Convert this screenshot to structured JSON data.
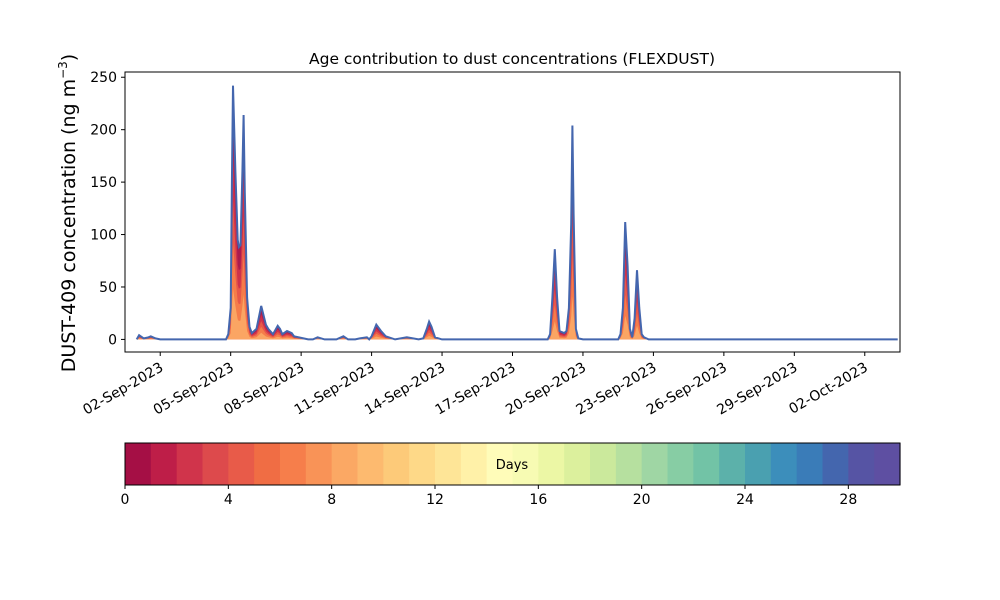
{
  "chart_data": {
    "type": "area",
    "title": "Age contribution to dust concentrations (FLEXDUST)",
    "ylabel_main": "DUST-409 concentration (ng m",
    "ylabel_sup": "−3",
    "ylabel_close": ")",
    "ylim": [
      -12,
      255
    ],
    "y_ticks": [
      0,
      50,
      100,
      150,
      200,
      250
    ],
    "x_tick_labels": [
      "02-Sep-2023",
      "05-Sep-2023",
      "08-Sep-2023",
      "11-Sep-2023",
      "14-Sep-2023",
      "17-Sep-2023",
      "20-Sep-2023",
      "23-Sep-2023",
      "26-Sep-2023",
      "29-Sep-2023",
      "02-Oct-2023"
    ],
    "x_tick_days": [
      2,
      5,
      8,
      11,
      14,
      17,
      20,
      23,
      26,
      29,
      32
    ],
    "xlim_days": [
      0.5,
      33.5
    ],
    "total_series": {
      "name": "total",
      "x_day": [
        1.0,
        1.1,
        1.3,
        1.5,
        1.6,
        1.8,
        2.0,
        2.5,
        3.0,
        3.5,
        4.0,
        4.5,
        4.8,
        4.9,
        5.0,
        5.05,
        5.1,
        5.2,
        5.3,
        5.35,
        5.42,
        5.5,
        5.55,
        5.6,
        5.7,
        5.8,
        5.9,
        6.1,
        6.3,
        6.5,
        6.6,
        6.8,
        7.0,
        7.1,
        7.2,
        7.4,
        7.6,
        7.7,
        7.9,
        8.1,
        8.3,
        8.5,
        8.7,
        9.0,
        9.3,
        9.5,
        9.8,
        10.0,
        10.3,
        10.5,
        10.8,
        10.9,
        11.0,
        11.2,
        11.4,
        11.6,
        12.0,
        12.5,
        13.0,
        13.2,
        13.35,
        13.45,
        13.55,
        13.7,
        14.0,
        15.0,
        16.0,
        17.0,
        18.0,
        18.5,
        18.6,
        18.7,
        18.8,
        18.9,
        19.0,
        19.1,
        19.2,
        19.3,
        19.4,
        19.5,
        19.55,
        19.6,
        19.7,
        19.8,
        20.0,
        20.5,
        21.0,
        21.3,
        21.5,
        21.6,
        21.7,
        21.8,
        21.9,
        22.0,
        22.1,
        22.2,
        22.3,
        22.4,
        22.5,
        22.6,
        22.7,
        22.8,
        23.0,
        24.0,
        25.0,
        26.0,
        27.0,
        28.0,
        29.0,
        30.0,
        31.0,
        32.0,
        33.0,
        33.4
      ],
      "y_ngm3": [
        0,
        4,
        1,
        2,
        3,
        1,
        0,
        0,
        0,
        0,
        0,
        0,
        0,
        5,
        30,
        150,
        242,
        160,
        95,
        88,
        90,
        160,
        214,
        140,
        40,
        12,
        6,
        10,
        32,
        14,
        10,
        5,
        13,
        10,
        5,
        8,
        6,
        3,
        2,
        1,
        0,
        0,
        2,
        0,
        0,
        0,
        3,
        0,
        0,
        1,
        2,
        0,
        3,
        14,
        8,
        3,
        0,
        2,
        0,
        1,
        10,
        17,
        12,
        2,
        0,
        0,
        0,
        0,
        0,
        0,
        5,
        40,
        86,
        40,
        8,
        7,
        6,
        8,
        30,
        110,
        204,
        120,
        10,
        1,
        0,
        0,
        0,
        0,
        0,
        5,
        30,
        112,
        70,
        10,
        2,
        20,
        66,
        30,
        5,
        2,
        1,
        0,
        0,
        0,
        0,
        0,
        0,
        0,
        0,
        0,
        0,
        0,
        0,
        0
      ]
    },
    "colorbar": {
      "label": "Days",
      "range": [
        0,
        30
      ],
      "ticks": [
        0,
        4,
        8,
        12,
        16,
        20,
        24,
        28
      ],
      "colors": [
        "#a50f45",
        "#be1e48",
        "#d0344b",
        "#dd4a4c",
        "#e85b49",
        "#f06d44",
        "#f67e4b",
        "#f99357",
        "#fba864",
        "#fdba6f",
        "#fdca79",
        "#fed988",
        "#fee597",
        "#fff1a8",
        "#fffcb9",
        "#f7fbb3",
        "#ecf7a5",
        "#dcf09d",
        "#cbe99c",
        "#b6e09f",
        "#9fd6a4",
        "#87cda4",
        "#72c3a6",
        "#5cb1aa",
        "#4aa0b0",
        "#3c8ebb",
        "#3a7cb8",
        "#4466ae",
        "#5654a4",
        "#5e4fa2"
      ]
    },
    "age_layer_colors": [
      "#a50f45",
      "#d0344b",
      "#e85b49",
      "#f67e4b",
      "#fba864",
      "#4466ae"
    ],
    "grid": false,
    "legend": "none"
  }
}
